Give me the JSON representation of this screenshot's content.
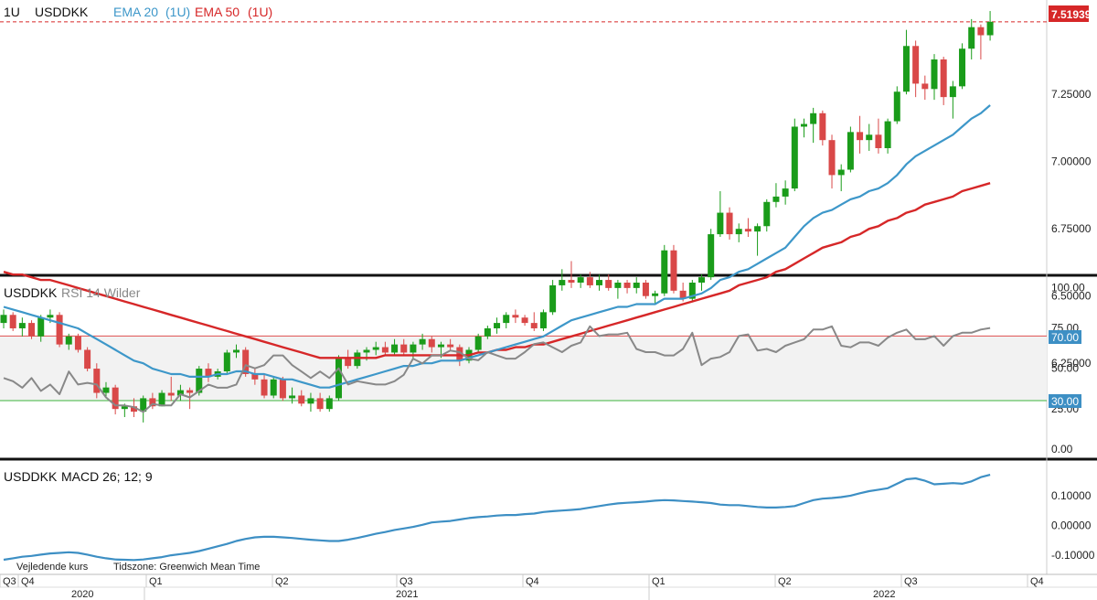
{
  "colors": {
    "up": "#1a9c1a",
    "down": "#d94848",
    "ema20": "#3d97c9",
    "ema50": "#d62728",
    "rsi": "#888888",
    "macd": "#3d8fc4",
    "overbought": "#e05050",
    "oversold": "#3cb43c",
    "price_badge": "#d62728"
  },
  "main": {
    "interval": "1U",
    "symbol": "USDDKK",
    "ema20_label": "EMA 20",
    "ema20_param": "(1U)",
    "ema50_label": "EMA 50",
    "ema50_param": "(1U)",
    "current_price": "7.51939"
  },
  "rsi_panel": {
    "symbol": "USDDKK",
    "label": "RSI 14 Wilder",
    "overbought_label": "70.00",
    "oversold_label": "30.00"
  },
  "macd_panel": {
    "symbol": "USDDKK",
    "label": "MACD 26; 12; 9"
  },
  "footer": {
    "note": "Vejledende kurs",
    "timezone": "Tidszone: Greenwich Mean Time"
  },
  "time_axis": {
    "quarters": [
      "Q3",
      "Q4",
      "Q1",
      "Q2",
      "Q3",
      "Q4",
      "Q1",
      "Q2",
      "Q3",
      "Q4"
    ],
    "years": [
      "2020",
      "2021",
      "2022"
    ]
  },
  "chart_data": [
    {
      "type": "candlestick",
      "title": "USDDKK",
      "interval": "1U",
      "ylim": [
        6.0,
        7.55
      ],
      "yticks": [
        "6.25000",
        "6.50000",
        "6.75000",
        "7.00000",
        "7.25000"
      ],
      "candles": [
        [
          6.4,
          6.45,
          6.38,
          6.43
        ],
        [
          6.43,
          6.44,
          6.37,
          6.38
        ],
        [
          6.38,
          6.42,
          6.35,
          6.4
        ],
        [
          6.4,
          6.41,
          6.34,
          6.35
        ],
        [
          6.35,
          6.43,
          6.33,
          6.42
        ],
        [
          6.42,
          6.45,
          6.4,
          6.43
        ],
        [
          6.43,
          6.44,
          6.31,
          6.32
        ],
        [
          6.32,
          6.36,
          6.3,
          6.35
        ],
        [
          6.35,
          6.36,
          6.29,
          6.3
        ],
        [
          6.3,
          6.31,
          6.22,
          6.23
        ],
        [
          6.23,
          6.25,
          6.12,
          6.14
        ],
        [
          6.14,
          6.18,
          6.12,
          6.16
        ],
        [
          6.16,
          6.17,
          6.06,
          6.08
        ],
        [
          6.08,
          6.1,
          6.05,
          6.09
        ],
        [
          6.09,
          6.12,
          6.05,
          6.07
        ],
        [
          6.07,
          6.13,
          6.03,
          6.12
        ],
        [
          6.12,
          6.14,
          6.08,
          6.09
        ],
        [
          6.09,
          6.15,
          6.09,
          6.14
        ],
        [
          6.14,
          6.2,
          6.11,
          6.13
        ],
        [
          6.13,
          6.17,
          6.11,
          6.15
        ],
        [
          6.15,
          6.16,
          6.08,
          6.14
        ],
        [
          6.14,
          6.24,
          6.13,
          6.23
        ],
        [
          6.23,
          6.25,
          6.18,
          6.2
        ],
        [
          6.2,
          6.23,
          6.19,
          6.22
        ],
        [
          6.22,
          6.3,
          6.21,
          6.29
        ],
        [
          6.29,
          6.32,
          6.27,
          6.3
        ],
        [
          6.3,
          6.31,
          6.2,
          6.21
        ],
        [
          6.21,
          6.23,
          6.17,
          6.19
        ],
        [
          6.19,
          6.21,
          6.12,
          6.13
        ],
        [
          6.13,
          6.2,
          6.12,
          6.19
        ],
        [
          6.19,
          6.2,
          6.11,
          6.12
        ],
        [
          6.12,
          6.16,
          6.1,
          6.13
        ],
        [
          6.13,
          6.15,
          6.09,
          6.1
        ],
        [
          6.1,
          6.14,
          6.07,
          6.12
        ],
        [
          6.12,
          6.14,
          6.07,
          6.08
        ],
        [
          6.08,
          6.13,
          6.07,
          6.12
        ],
        [
          6.12,
          6.28,
          6.11,
          6.27
        ],
        [
          6.27,
          6.3,
          6.23,
          6.24
        ],
        [
          6.24,
          6.3,
          6.23,
          6.29
        ],
        [
          6.29,
          6.31,
          6.26,
          6.3
        ],
        [
          6.3,
          6.33,
          6.28,
          6.31
        ],
        [
          6.31,
          6.33,
          6.28,
          6.29
        ],
        [
          6.29,
          6.34,
          6.28,
          6.32
        ],
        [
          6.32,
          6.34,
          6.28,
          6.29
        ],
        [
          6.29,
          6.33,
          6.27,
          6.32
        ],
        [
          6.32,
          6.36,
          6.3,
          6.34
        ],
        [
          6.34,
          6.35,
          6.29,
          6.31
        ],
        [
          6.31,
          6.33,
          6.27,
          6.32
        ],
        [
          6.32,
          6.34,
          6.3,
          6.31
        ],
        [
          6.31,
          6.32,
          6.24,
          6.26
        ],
        [
          6.26,
          6.31,
          6.25,
          6.3
        ],
        [
          6.3,
          6.36,
          6.29,
          6.35
        ],
        [
          6.35,
          6.39,
          6.34,
          6.38
        ],
        [
          6.38,
          6.42,
          6.36,
          6.4
        ],
        [
          6.4,
          6.44,
          6.38,
          6.43
        ],
        [
          6.43,
          6.45,
          6.4,
          6.42
        ],
        [
          6.42,
          6.43,
          6.39,
          6.4
        ],
        [
          6.4,
          6.44,
          6.37,
          6.38
        ],
        [
          6.38,
          6.45,
          6.37,
          6.44
        ],
        [
          6.44,
          6.56,
          6.43,
          6.54
        ],
        [
          6.54,
          6.6,
          6.52,
          6.56
        ],
        [
          6.56,
          6.63,
          6.53,
          6.55
        ],
        [
          6.55,
          6.58,
          6.53,
          6.57
        ],
        [
          6.57,
          6.59,
          6.53,
          6.54
        ],
        [
          6.54,
          6.58,
          6.52,
          6.56
        ],
        [
          6.56,
          6.58,
          6.52,
          6.53
        ],
        [
          6.53,
          6.56,
          6.49,
          6.55
        ],
        [
          6.55,
          6.56,
          6.51,
          6.53
        ],
        [
          6.53,
          6.57,
          6.51,
          6.55
        ],
        [
          6.55,
          6.56,
          6.49,
          6.5
        ],
        [
          6.5,
          6.52,
          6.47,
          6.51
        ],
        [
          6.51,
          6.69,
          6.5,
          6.67
        ],
        [
          6.67,
          6.69,
          6.51,
          6.52
        ],
        [
          6.52,
          6.55,
          6.48,
          6.49
        ],
        [
          6.49,
          6.56,
          6.48,
          6.55
        ],
        [
          6.55,
          6.58,
          6.52,
          6.57
        ],
        [
          6.57,
          6.75,
          6.56,
          6.73
        ],
        [
          6.73,
          6.89,
          6.72,
          6.81
        ],
        [
          6.81,
          6.83,
          6.71,
          6.73
        ],
        [
          6.73,
          6.77,
          6.7,
          6.75
        ],
        [
          6.75,
          6.79,
          6.72,
          6.74
        ],
        [
          6.74,
          6.77,
          6.65,
          6.76
        ],
        [
          6.76,
          6.86,
          6.74,
          6.85
        ],
        [
          6.85,
          6.92,
          6.83,
          6.87
        ],
        [
          6.87,
          6.93,
          6.84,
          6.9
        ],
        [
          6.9,
          7.16,
          6.89,
          7.13
        ],
        [
          7.13,
          7.16,
          7.09,
          7.14
        ],
        [
          7.14,
          7.2,
          7.07,
          7.18
        ],
        [
          7.18,
          7.19,
          7.06,
          7.08
        ],
        [
          7.08,
          7.1,
          6.9,
          6.95
        ],
        [
          6.95,
          6.99,
          6.89,
          6.97
        ],
        [
          6.97,
          7.13,
          6.96,
          7.11
        ],
        [
          7.11,
          7.17,
          7.03,
          7.08
        ],
        [
          7.08,
          7.14,
          7.04,
          7.1
        ],
        [
          7.1,
          7.16,
          7.03,
          7.05
        ],
        [
          7.05,
          7.16,
          7.03,
          7.15
        ],
        [
          7.15,
          7.28,
          7.14,
          7.26
        ],
        [
          7.26,
          7.49,
          7.25,
          7.43
        ],
        [
          7.43,
          7.45,
          7.24,
          7.29
        ],
        [
          7.29,
          7.32,
          7.23,
          7.27
        ],
        [
          7.27,
          7.4,
          7.23,
          7.38
        ],
        [
          7.38,
          7.39,
          7.21,
          7.24
        ],
        [
          7.24,
          7.3,
          7.16,
          7.28
        ],
        [
          7.28,
          7.44,
          7.27,
          7.42
        ],
        [
          7.42,
          7.53,
          7.38,
          7.5
        ],
        [
          7.5,
          7.51,
          7.38,
          7.47
        ],
        [
          7.47,
          7.56,
          7.45,
          7.52
        ]
      ],
      "series": [
        {
          "name": "EMA 20",
          "values": [
            6.46,
            6.45,
            6.44,
            6.43,
            6.42,
            6.41,
            6.4,
            6.39,
            6.38,
            6.36,
            6.34,
            6.32,
            6.3,
            6.28,
            6.26,
            6.25,
            6.23,
            6.22,
            6.21,
            6.21,
            6.2,
            6.2,
            6.2,
            6.21,
            6.21,
            6.22,
            6.22,
            6.21,
            6.21,
            6.2,
            6.19,
            6.19,
            6.18,
            6.17,
            6.16,
            6.16,
            6.17,
            6.18,
            6.19,
            6.2,
            6.21,
            6.22,
            6.23,
            6.24,
            6.24,
            6.25,
            6.25,
            6.26,
            6.26,
            6.26,
            6.27,
            6.28,
            6.29,
            6.3,
            6.31,
            6.32,
            6.33,
            6.34,
            6.35,
            6.37,
            6.39,
            6.41,
            6.42,
            6.43,
            6.44,
            6.45,
            6.46,
            6.46,
            6.47,
            6.47,
            6.47,
            6.49,
            6.49,
            6.49,
            6.5,
            6.51,
            6.53,
            6.56,
            6.57,
            6.59,
            6.6,
            6.62,
            6.64,
            6.66,
            6.68,
            6.72,
            6.76,
            6.79,
            6.81,
            6.82,
            6.84,
            6.86,
            6.87,
            6.89,
            6.9,
            6.92,
            6.95,
            6.99,
            7.02,
            7.04,
            7.06,
            7.08,
            7.1,
            7.13,
            7.16,
            7.18,
            7.21
          ]
        },
        {
          "name": "EMA 50",
          "values": [
            6.59,
            6.58,
            6.58,
            6.57,
            6.56,
            6.56,
            6.55,
            6.54,
            6.53,
            6.52,
            6.51,
            6.5,
            6.49,
            6.48,
            6.47,
            6.46,
            6.45,
            6.44,
            6.43,
            6.42,
            6.41,
            6.4,
            6.39,
            6.38,
            6.37,
            6.36,
            6.35,
            6.34,
            6.33,
            6.32,
            6.31,
            6.3,
            6.29,
            6.28,
            6.27,
            6.27,
            6.27,
            6.27,
            6.27,
            6.27,
            6.27,
            6.28,
            6.28,
            6.28,
            6.28,
            6.28,
            6.28,
            6.28,
            6.28,
            6.28,
            6.28,
            6.29,
            6.29,
            6.3,
            6.3,
            6.31,
            6.31,
            6.32,
            6.32,
            6.33,
            6.34,
            6.35,
            6.36,
            6.37,
            6.38,
            6.39,
            6.4,
            6.41,
            6.42,
            6.43,
            6.44,
            6.45,
            6.46,
            6.47,
            6.48,
            6.49,
            6.5,
            6.51,
            6.52,
            6.54,
            6.55,
            6.56,
            6.57,
            6.59,
            6.6,
            6.62,
            6.64,
            6.66,
            6.68,
            6.69,
            6.7,
            6.72,
            6.73,
            6.75,
            6.76,
            6.78,
            6.79,
            6.81,
            6.82,
            6.84,
            6.85,
            6.86,
            6.87,
            6.89,
            6.9,
            6.91,
            6.92
          ]
        }
      ]
    },
    {
      "type": "line",
      "title": "RSI 14 Wilder",
      "ylim": [
        0,
        100
      ],
      "yticks": [
        "0.00",
        "25.00",
        "50.00",
        "75.00",
        "100.00"
      ],
      "reference_lines": [
        70,
        30
      ],
      "series": [
        {
          "name": "RSI 14 Wilder",
          "values": [
            44,
            42,
            38,
            44,
            36,
            40,
            34,
            48,
            40,
            41,
            40,
            32,
            27,
            27,
            26,
            23,
            28,
            27,
            27,
            34,
            32,
            36,
            40,
            38,
            38,
            40,
            52,
            50,
            52,
            58,
            58,
            52,
            48,
            44,
            48,
            44,
            50,
            40,
            42,
            41,
            40,
            40,
            42,
            46,
            56,
            53,
            58,
            58,
            61,
            60,
            56,
            55,
            60,
            58,
            56,
            56,
            60,
            65,
            66,
            63,
            60,
            64,
            66,
            76,
            70,
            71,
            71,
            72,
            62,
            60,
            60,
            58,
            58,
            62,
            72,
            52,
            56,
            57,
            60,
            70,
            71,
            61,
            62,
            60,
            64,
            66,
            68,
            74,
            74,
            76,
            64,
            63,
            66,
            66,
            64,
            69,
            72,
            74,
            68,
            68,
            70,
            64,
            70,
            72,
            72,
            74,
            75
          ]
        }
      ]
    },
    {
      "type": "line",
      "title": "MACD 26; 12; 9",
      "ylim": [
        -0.13,
        0.19
      ],
      "yticks": [
        "-0.10000",
        "0.00000",
        "0.10000"
      ],
      "series": [
        {
          "name": "MACD 26; 12; 9",
          "values": [
            -0.115,
            -0.11,
            -0.105,
            -0.102,
            -0.098,
            -0.094,
            -0.092,
            -0.09,
            -0.092,
            -0.098,
            -0.105,
            -0.11,
            -0.114,
            -0.115,
            -0.116,
            -0.114,
            -0.11,
            -0.106,
            -0.1,
            -0.096,
            -0.092,
            -0.086,
            -0.078,
            -0.07,
            -0.062,
            -0.052,
            -0.045,
            -0.04,
            -0.038,
            -0.038,
            -0.04,
            -0.042,
            -0.045,
            -0.048,
            -0.05,
            -0.052,
            -0.052,
            -0.048,
            -0.042,
            -0.035,
            -0.028,
            -0.022,
            -0.015,
            -0.01,
            -0.005,
            0.002,
            0.01,
            0.013,
            0.015,
            0.02,
            0.025,
            0.028,
            0.03,
            0.033,
            0.035,
            0.035,
            0.038,
            0.04,
            0.045,
            0.048,
            0.05,
            0.052,
            0.055,
            0.06,
            0.065,
            0.07,
            0.074,
            0.076,
            0.078,
            0.08,
            0.083,
            0.085,
            0.084,
            0.082,
            0.08,
            0.078,
            0.075,
            0.07,
            0.068,
            0.068,
            0.065,
            0.062,
            0.06,
            0.06,
            0.062,
            0.065,
            0.075,
            0.085,
            0.09,
            0.092,
            0.095,
            0.1,
            0.108,
            0.115,
            0.12,
            0.125,
            0.14,
            0.155,
            0.158,
            0.15,
            0.138,
            0.14,
            0.142,
            0.14,
            0.148,
            0.162,
            0.17
          ]
        }
      ]
    }
  ]
}
